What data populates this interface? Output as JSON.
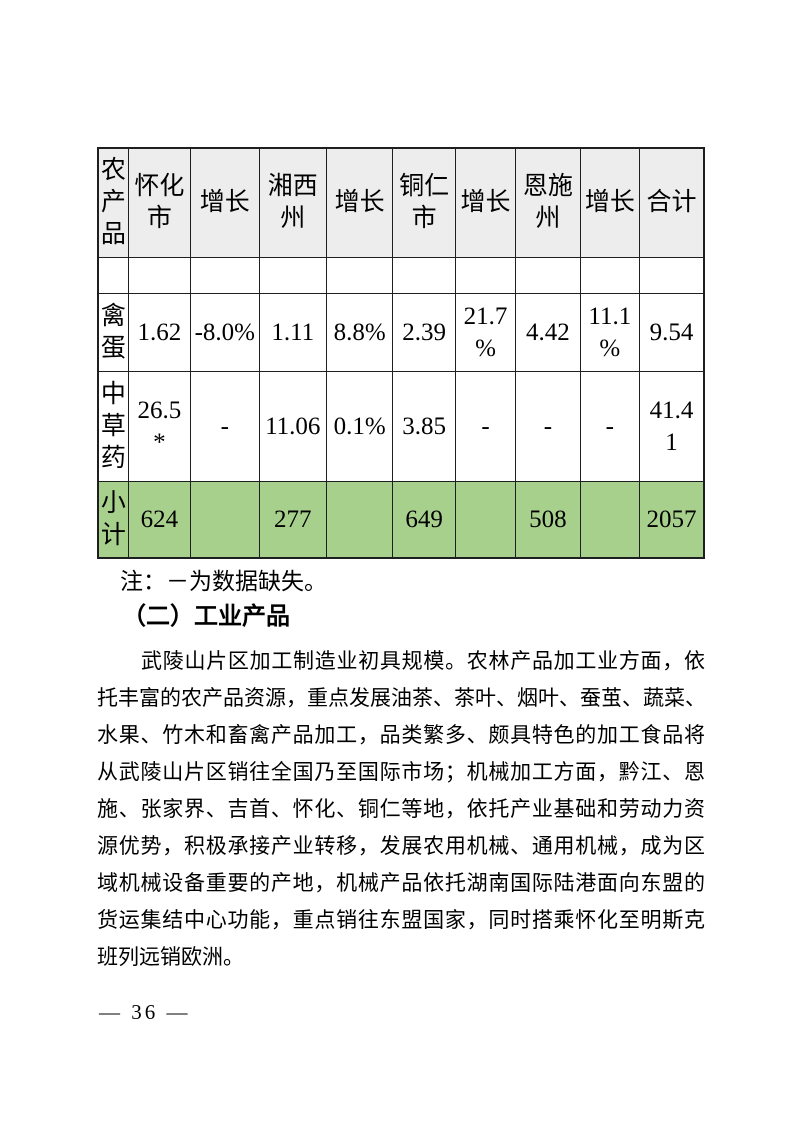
{
  "page": {
    "footer_page_number": "— 36 —"
  },
  "table": {
    "header": [
      "农\n产\n品",
      "怀化\n市",
      "增长",
      "湘西\n州",
      "增长",
      "铜仁\n市",
      "增长",
      "恩施\n州",
      "增长",
      "合计"
    ],
    "rows": [
      {
        "cells": [
          "",
          "",
          "",
          "",
          "",
          "",
          "",
          "",
          "",
          ""
        ]
      },
      {
        "cells": [
          "禽\n蛋",
          "1.62",
          "-8.0%",
          "1.11",
          "8.8%",
          "2.39",
          "21.7\n%",
          "4.42",
          "11.1\n%",
          "9.54"
        ]
      },
      {
        "cells": [
          "中\n草\n药",
          "26.5\n*",
          "-",
          "11.06",
          "0.1%",
          "3.85",
          "-",
          "-",
          "-",
          "41.4\n1"
        ]
      },
      {
        "cells": [
          "小\n计",
          "624",
          "",
          "277",
          "",
          "649",
          "",
          "508",
          "",
          "2057"
        ],
        "highlight": true
      }
    ],
    "colors": {
      "header_bg": "#ededed",
      "highlight_bg": "#a8d08d",
      "border": "#1f1f1f"
    }
  },
  "note": "注：－为数据缺失。",
  "heading": "（二）工业产品",
  "paragraph_lines": [
    "武陵山片区加工制造业初具规模。农林产品加工业方面，依",
    "托丰富的农产品资源，重点发展油茶、茶叶、烟叶、蚕茧、蔬菜、",
    "水果、竹木和畜禽产品加工，品类繁多、颇具特色的加工食品将",
    "从武陵山片区销往全国乃至国际市场；机械加工方面，黔江、恩",
    "施、张家界、吉首、怀化、铜仁等地，依托产业基础和劳动力资",
    "源优势，积极承接产业转移，发展农用机械、通用机械，成为区",
    "域机械设备重要的产地，机械产品依托湖南国际陆港面向东盟的",
    "货运集结中心功能，重点销往东盟国家，同时搭乘怀化至明斯克",
    "班列远销欧洲。"
  ]
}
